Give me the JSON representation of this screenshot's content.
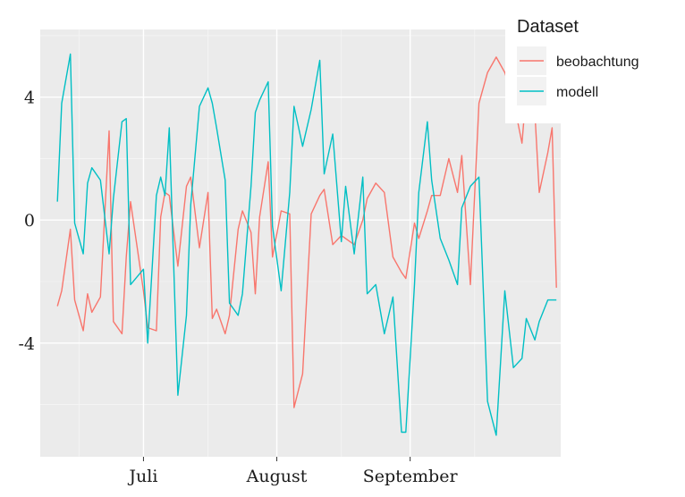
{
  "chart_data": {
    "type": "line",
    "title": "",
    "xlabel": "",
    "ylabel": "",
    "x_range": [
      "2023-06-07",
      "2023-10-06"
    ],
    "ylim": [
      -7.7,
      6.2
    ],
    "y_ticks": [
      {
        "value": -4,
        "label": "-4"
      },
      {
        "value": 0,
        "label": "0"
      },
      {
        "value": 4,
        "label": "4"
      }
    ],
    "x_ticks": [
      {
        "date": "2023-07-01",
        "label": "Juli"
      },
      {
        "date": "2023-08-01",
        "label": "August"
      },
      {
        "date": "2023-09-01",
        "label": "September"
      }
    ],
    "x_minor_ticks": [
      "2023-06-16",
      "2023-07-16",
      "2023-08-16",
      "2023-09-16"
    ],
    "grid": true,
    "legend": {
      "title": "Dataset",
      "position": "top-right"
    },
    "series": [
      {
        "name": "beobachtung",
        "color": "#F8766D",
        "x": [
          "2023-06-11",
          "2023-06-12",
          "2023-06-14",
          "2023-06-15",
          "2023-06-17",
          "2023-06-18",
          "2023-06-19",
          "2023-06-21",
          "2023-06-23",
          "2023-06-24",
          "2023-06-26",
          "2023-06-27",
          "2023-06-28",
          "2023-07-01",
          "2023-07-02",
          "2023-07-04",
          "2023-07-05",
          "2023-07-06",
          "2023-07-07",
          "2023-07-09",
          "2023-07-11",
          "2023-07-12",
          "2023-07-14",
          "2023-07-16",
          "2023-07-17",
          "2023-07-18",
          "2023-07-20",
          "2023-07-21",
          "2023-07-23",
          "2023-07-24",
          "2023-07-26",
          "2023-07-27",
          "2023-07-28",
          "2023-07-30",
          "2023-07-31",
          "2023-08-02",
          "2023-08-04",
          "2023-08-05",
          "2023-08-07",
          "2023-08-09",
          "2023-08-11",
          "2023-08-12",
          "2023-08-14",
          "2023-08-16",
          "2023-08-17",
          "2023-08-19",
          "2023-08-21",
          "2023-08-22",
          "2023-08-24",
          "2023-08-26",
          "2023-08-28",
          "2023-08-30",
          "2023-08-31",
          "2023-09-02",
          "2023-09-03",
          "2023-09-05",
          "2023-09-06",
          "2023-09-08",
          "2023-09-10",
          "2023-09-12",
          "2023-09-13",
          "2023-09-15",
          "2023-09-17",
          "2023-09-19",
          "2023-09-21",
          "2023-09-23",
          "2023-09-25",
          "2023-09-27",
          "2023-09-28",
          "2023-09-30",
          "2023-10-01",
          "2023-10-03",
          "2023-10-04",
          "2023-10-05"
        ],
        "y": [
          -2.8,
          -2.3,
          -0.3,
          -2.6,
          -3.6,
          -2.4,
          -3.0,
          -2.5,
          2.9,
          -3.3,
          -3.7,
          -1.2,
          0.6,
          -2.3,
          -3.5,
          -3.6,
          0.1,
          0.9,
          0.8,
          -1.5,
          1.1,
          1.4,
          -0.9,
          0.9,
          -3.2,
          -2.9,
          -3.7,
          -3.1,
          -0.3,
          0.3,
          -0.4,
          -2.4,
          0.1,
          1.9,
          -1.2,
          0.3,
          0.2,
          -6.1,
          -5.0,
          0.2,
          0.8,
          1.0,
          -0.8,
          -0.5,
          -0.6,
          -0.8,
          0.0,
          0.7,
          1.2,
          0.9,
          -1.2,
          -1.7,
          -1.9,
          -0.1,
          -0.6,
          0.3,
          0.8,
          0.8,
          2.0,
          0.9,
          2.1,
          -2.1,
          3.8,
          4.8,
          5.3,
          4.8,
          3.9,
          2.5,
          4.2,
          3.5,
          0.9,
          2.2,
          3.0,
          -2.2
        ]
      },
      {
        "name": "modell",
        "color": "#00BFC4",
        "x": [
          "2023-06-11",
          "2023-06-12",
          "2023-06-14",
          "2023-06-15",
          "2023-06-17",
          "2023-06-18",
          "2023-06-19",
          "2023-06-21",
          "2023-06-23",
          "2023-06-24",
          "2023-06-26",
          "2023-06-27",
          "2023-06-28",
          "2023-07-01",
          "2023-07-02",
          "2023-07-04",
          "2023-07-05",
          "2023-07-06",
          "2023-07-07",
          "2023-07-09",
          "2023-07-11",
          "2023-07-12",
          "2023-07-14",
          "2023-07-16",
          "2023-07-17",
          "2023-07-18",
          "2023-07-20",
          "2023-07-21",
          "2023-07-23",
          "2023-07-24",
          "2023-07-26",
          "2023-07-27",
          "2023-07-28",
          "2023-07-30",
          "2023-07-31",
          "2023-08-02",
          "2023-08-04",
          "2023-08-05",
          "2023-08-07",
          "2023-08-09",
          "2023-08-11",
          "2023-08-12",
          "2023-08-14",
          "2023-08-16",
          "2023-08-17",
          "2023-08-19",
          "2023-08-21",
          "2023-08-22",
          "2023-08-24",
          "2023-08-26",
          "2023-08-28",
          "2023-08-30",
          "2023-08-31",
          "2023-09-02",
          "2023-09-03",
          "2023-09-05",
          "2023-09-06",
          "2023-09-08",
          "2023-09-10",
          "2023-09-12",
          "2023-09-13",
          "2023-09-15",
          "2023-09-17",
          "2023-09-19",
          "2023-09-21",
          "2023-09-23",
          "2023-09-25",
          "2023-09-27",
          "2023-09-28",
          "2023-09-30",
          "2023-10-01",
          "2023-10-03",
          "2023-10-04",
          "2023-10-05"
        ],
        "y": [
          0.6,
          3.8,
          5.4,
          -0.1,
          -1.1,
          1.2,
          1.7,
          1.3,
          -1.1,
          0.7,
          3.2,
          3.3,
          -2.1,
          -1.6,
          -4.0,
          0.8,
          1.4,
          0.8,
          3.0,
          -5.7,
          -3.1,
          0.5,
          3.7,
          4.3,
          3.8,
          3.0,
          1.3,
          -2.7,
          -3.1,
          -2.4,
          1.1,
          3.5,
          3.9,
          4.5,
          -0.2,
          -2.3,
          0.9,
          3.7,
          2.4,
          3.6,
          5.2,
          1.5,
          2.8,
          -0.7,
          1.1,
          -1.1,
          1.4,
          -2.4,
          -2.1,
          -3.7,
          -2.5,
          -6.9,
          -6.9,
          -2.1,
          0.9,
          3.2,
          1.3,
          -0.6,
          -1.3,
          -2.1,
          0.4,
          1.1,
          1.4,
          -5.9,
          -7.0,
          -2.3,
          -4.8,
          -4.5,
          -3.2,
          -3.9,
          -3.3,
          -2.6,
          -2.6,
          -2.6
        ]
      }
    ]
  }
}
